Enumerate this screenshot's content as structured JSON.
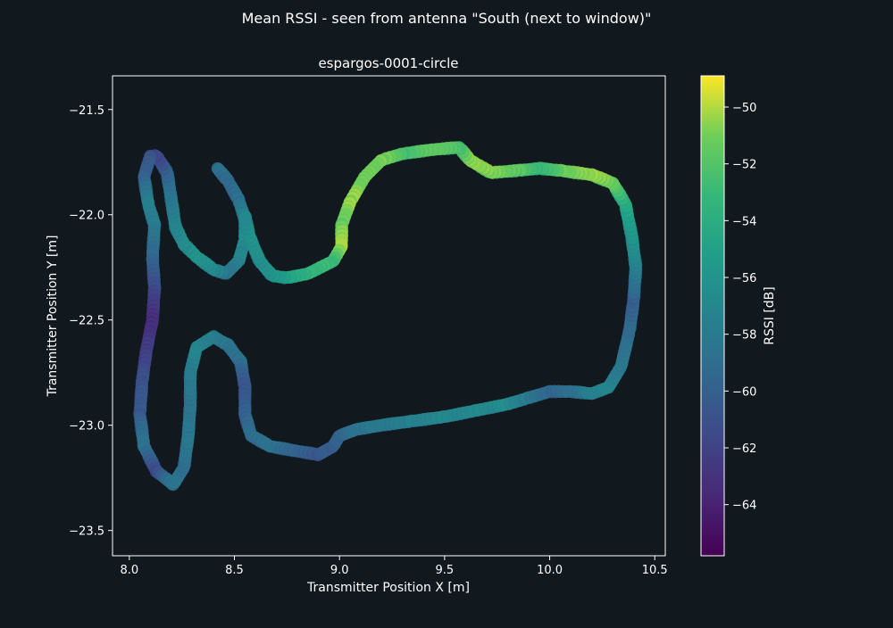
{
  "figure": {
    "suptitle": "Mean RSSI - seen from antenna \"South (next to window)\"",
    "background": "#11181e",
    "foreground": "#ffffff"
  },
  "chart_data": {
    "type": "scatter",
    "title": "espargos-0001-circle",
    "xlabel": "Transmitter Position X [m]",
    "ylabel": "Transmitter Position Y [m]",
    "xlim": [
      7.92,
      10.55
    ],
    "ylim": [
      -23.62,
      -21.34
    ],
    "xticks": [
      8.0,
      8.5,
      9.0,
      9.5,
      10.0,
      10.5
    ],
    "xtick_labels": [
      "8.0",
      "8.5",
      "9.0",
      "9.5",
      "10.0",
      "10.5"
    ],
    "yticks": [
      -21.5,
      -22.0,
      -22.5,
      -23.0,
      -23.5
    ],
    "ytick_labels": [
      "−21.5",
      "−22.0",
      "−22.5",
      "−23.0",
      "−23.5"
    ],
    "grid": false,
    "colormap": "viridis",
    "colorbar": {
      "label": "RSSI [dB]",
      "range": [
        -65.8,
        -48.9
      ],
      "ticks": [
        -50,
        -52,
        -54,
        -56,
        -58,
        -60,
        -62,
        -64
      ],
      "tick_labels": [
        "−50",
        "−52",
        "−54",
        "−56",
        "−58",
        "−60",
        "−62",
        "−64"
      ]
    },
    "series": [
      {
        "points": [
          [
            8.42,
            -21.78,
            -58.5
          ],
          [
            8.47,
            -21.84,
            -59.5
          ],
          [
            8.52,
            -21.93,
            -59.0
          ],
          [
            8.55,
            -22.02,
            -57.5
          ],
          [
            8.55,
            -22.12,
            -56.5
          ],
          [
            8.52,
            -22.22,
            -57.5
          ],
          [
            8.46,
            -22.28,
            -58.5
          ],
          [
            8.4,
            -22.26,
            -57.0
          ],
          [
            8.32,
            -22.2,
            -56.0
          ],
          [
            8.26,
            -22.14,
            -56.5
          ],
          [
            8.22,
            -22.06,
            -57.0
          ],
          [
            8.2,
            -21.93,
            -58.0
          ],
          [
            8.18,
            -21.8,
            -59.5
          ],
          [
            8.13,
            -21.72,
            -62.0
          ],
          [
            8.1,
            -21.72,
            -61.0
          ],
          [
            8.07,
            -21.82,
            -60.0
          ],
          [
            8.09,
            -21.95,
            -57.5
          ],
          [
            8.12,
            -22.05,
            -58.0
          ],
          [
            8.11,
            -22.2,
            -59.5
          ],
          [
            8.12,
            -22.35,
            -61.5
          ],
          [
            8.11,
            -22.5,
            -63.5
          ],
          [
            8.08,
            -22.65,
            -62.5
          ],
          [
            8.06,
            -22.8,
            -61.0
          ],
          [
            8.05,
            -22.95,
            -60.5
          ],
          [
            8.07,
            -23.1,
            -58.5
          ],
          [
            8.13,
            -23.22,
            -61.5
          ],
          [
            8.21,
            -23.28,
            -58.0
          ],
          [
            8.26,
            -23.2,
            -59.0
          ],
          [
            8.28,
            -23.05,
            -58.0
          ],
          [
            8.29,
            -22.9,
            -58.5
          ],
          [
            8.29,
            -22.75,
            -58.0
          ],
          [
            8.32,
            -22.63,
            -57.0
          ],
          [
            8.4,
            -22.58,
            -57.5
          ],
          [
            8.47,
            -22.62,
            -58.5
          ],
          [
            8.53,
            -22.7,
            -59.0
          ],
          [
            8.55,
            -22.82,
            -61.0
          ],
          [
            8.55,
            -22.95,
            -60.0
          ],
          [
            8.58,
            -23.05,
            -59.0
          ],
          [
            8.67,
            -23.1,
            -58.5
          ],
          [
            8.78,
            -23.12,
            -59.5
          ],
          [
            8.9,
            -23.14,
            -60.5
          ],
          [
            8.97,
            -23.1,
            -60.0
          ],
          [
            9.0,
            -23.05,
            -59.5
          ],
          [
            9.08,
            -23.02,
            -58.5
          ],
          [
            9.2,
            -23.0,
            -58.0
          ],
          [
            9.35,
            -22.98,
            -57.5
          ],
          [
            9.5,
            -22.96,
            -57.0
          ],
          [
            9.65,
            -22.93,
            -57.0
          ],
          [
            9.8,
            -22.9,
            -56.5
          ],
          [
            9.9,
            -22.87,
            -58.0
          ],
          [
            10.0,
            -22.84,
            -59.5
          ],
          [
            10.1,
            -22.84,
            -59.0
          ],
          [
            10.2,
            -22.85,
            -57.5
          ],
          [
            10.28,
            -22.82,
            -57.0
          ],
          [
            10.34,
            -22.72,
            -58.0
          ],
          [
            10.38,
            -22.55,
            -59.0
          ],
          [
            10.4,
            -22.4,
            -60.0
          ],
          [
            10.41,
            -22.25,
            -57.5
          ],
          [
            10.39,
            -22.1,
            -56.0
          ],
          [
            10.36,
            -21.95,
            -54.5
          ],
          [
            10.3,
            -21.85,
            -51.5
          ],
          [
            10.2,
            -21.81,
            -50.5
          ],
          [
            10.05,
            -21.79,
            -51.5
          ],
          [
            9.95,
            -21.78,
            -53.5
          ],
          [
            9.85,
            -21.79,
            -52.0
          ],
          [
            9.72,
            -21.8,
            -51.0
          ],
          [
            9.62,
            -21.74,
            -50.5
          ],
          [
            9.57,
            -21.68,
            -52.5
          ],
          [
            9.45,
            -21.69,
            -51.5
          ],
          [
            9.3,
            -21.71,
            -52.5
          ],
          [
            9.2,
            -21.74,
            -51.0
          ],
          [
            9.12,
            -21.82,
            -51.5
          ],
          [
            9.05,
            -21.94,
            -50.5
          ],
          [
            9.01,
            -22.05,
            -51.5
          ],
          [
            9.01,
            -22.15,
            -50.0
          ],
          [
            8.97,
            -22.22,
            -53.0
          ],
          [
            8.85,
            -22.28,
            -53.5
          ],
          [
            8.75,
            -22.3,
            -55.0
          ],
          [
            8.68,
            -22.29,
            -56.0
          ],
          [
            8.62,
            -22.22,
            -56.5
          ],
          [
            8.57,
            -22.1,
            -56.0
          ],
          [
            8.55,
            -22.0,
            -57.0
          ]
        ]
      }
    ]
  }
}
